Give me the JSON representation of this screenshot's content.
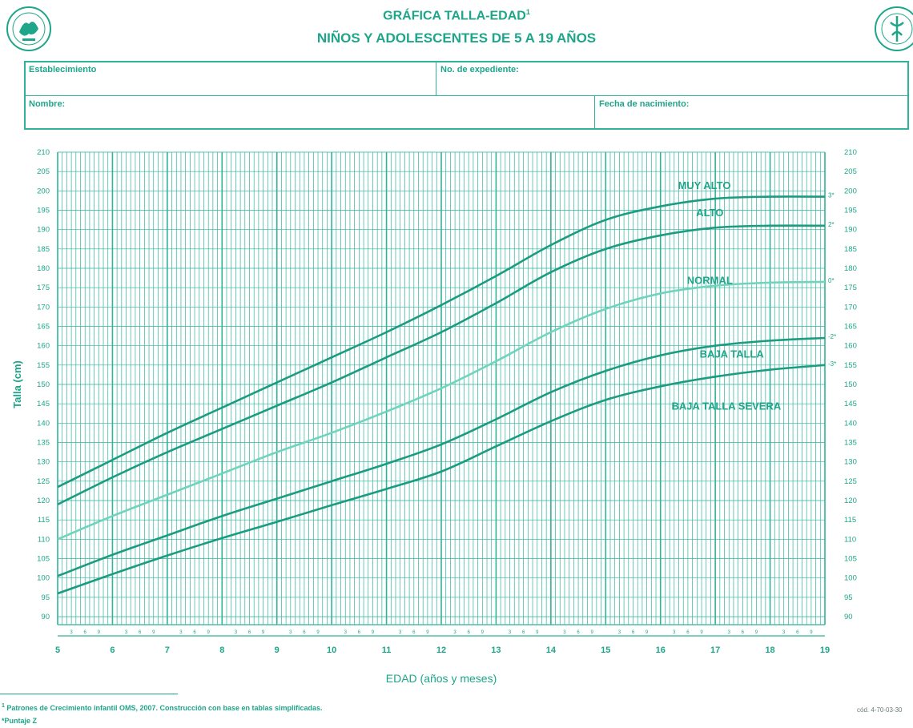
{
  "header": {
    "title": "GRÁFICA TALLA-EDAD",
    "title_superscript": "1",
    "subtitle": "NIÑOS Y ADOLESCENTES DE 5 A 19 AÑOS",
    "logo_left_text": "SEGURO SOCIAL",
    "logo_right_text": "SEGURIDAD"
  },
  "form": {
    "establecimiento_label": "Establecimiento",
    "expediente_label": "No. de expediente:",
    "nombre_label": "Nombre:",
    "fecha_label": "Fecha de nacimiento:"
  },
  "footer": {
    "note_superscript": "1",
    "note": "Patrones de Crecimiento infantil OMS, 2007. Construcción con base en tablas simplificadas.",
    "puntaje": "*Puntaje  Z",
    "code": "cód. 4-70-03-30"
  },
  "colors": {
    "grid": "#2fb39a",
    "line_dark": "#1b9b80",
    "line_light": "#6fd3bd",
    "text": "#1fa58a"
  },
  "chart_data": {
    "type": "line",
    "xlabel": "EDAD (años y meses)",
    "ylabel": "Talla (cm)",
    "xlim": [
      5,
      19
    ],
    "ylim": [
      90,
      210
    ],
    "x_ticks": [
      5,
      6,
      7,
      8,
      9,
      10,
      11,
      12,
      13,
      14,
      15,
      16,
      17,
      18,
      19
    ],
    "y_ticks": [
      90,
      95,
      100,
      105,
      110,
      115,
      120,
      125,
      130,
      135,
      140,
      145,
      150,
      155,
      160,
      165,
      170,
      175,
      180,
      185,
      190,
      195,
      200,
      205,
      210
    ],
    "month_tick_labels": [
      "3",
      "6",
      "9"
    ],
    "grid": true,
    "x": [
      5,
      6,
      7,
      8,
      9,
      10,
      11,
      12,
      13,
      14,
      15,
      16,
      17,
      18,
      19
    ],
    "series": [
      {
        "zscore": "3*",
        "values": [
          123.5,
          130.5,
          137.5,
          144,
          150.5,
          157,
          163.5,
          170.5,
          178,
          186,
          192.5,
          196,
          198,
          198.5,
          198.5
        ]
      },
      {
        "zscore": "2*",
        "values": [
          119,
          126,
          132.5,
          138.5,
          144.5,
          150.5,
          157,
          163.5,
          171,
          179,
          185,
          188.5,
          190.5,
          191,
          191
        ]
      },
      {
        "zscore": "0*",
        "values": [
          110,
          116,
          121.5,
          127,
          132.5,
          137.5,
          143,
          149,
          156,
          163.5,
          169.5,
          173.5,
          175.5,
          176.3,
          176.5
        ]
      },
      {
        "zscore": "-2*",
        "values": [
          100.5,
          106,
          111,
          116,
          120.5,
          125,
          129.5,
          134.5,
          141,
          148,
          153.5,
          157.5,
          160,
          161.3,
          162
        ]
      },
      {
        "zscore": "-3*",
        "values": [
          96,
          101,
          105.8,
          110.3,
          114.5,
          118.8,
          123,
          127.5,
          134,
          140.5,
          146,
          149.5,
          152,
          153.8,
          155
        ]
      }
    ],
    "zone_labels": [
      {
        "text": "MUY ALTO",
        "x": 16.8,
        "y": 201.5
      },
      {
        "text": "ALTO",
        "x": 16.9,
        "y": 194.5
      },
      {
        "text": "NORMAL",
        "x": 16.9,
        "y": 177
      },
      {
        "text": "BAJA TALLA",
        "x": 17.3,
        "y": 158
      },
      {
        "text": "BAJA TALLA SEVERA",
        "x": 17.2,
        "y": 144.5
      }
    ]
  }
}
